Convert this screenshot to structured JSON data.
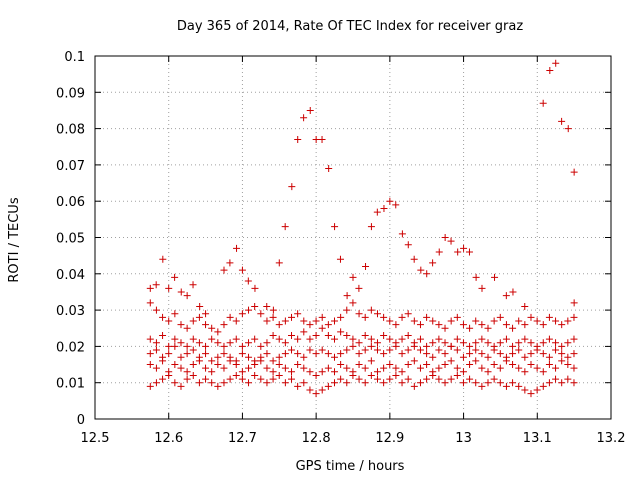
{
  "chart_data": {
    "type": "scatter",
    "title": "Day 365 of 2014, Rate Of TEC Index for receiver graz",
    "xlabel": "GPS time / hours",
    "ylabel": "ROTI / TECUs",
    "xlim": [
      12.5,
      13.2
    ],
    "ylim": [
      0,
      0.1
    ],
    "xticks": [
      "12.5",
      "12.6",
      "12.7",
      "12.8",
      "12.9",
      "13",
      "13.1",
      "13.2"
    ],
    "yticks": [
      "0",
      "0.01",
      "0.02",
      "0.03",
      "0.04",
      "0.05",
      "0.06",
      "0.07",
      "0.08",
      "0.09",
      "0.1"
    ],
    "grid": true,
    "marker": "+",
    "series_color": "#cc0000",
    "x_start": 12.575,
    "x_end": 13.15,
    "x_step": 0.00833,
    "bands": [
      {
        "name": "low",
        "values": [
          0.009,
          0.01,
          0.011,
          0.012,
          0.01,
          0.009,
          0.011,
          0.012,
          0.01,
          0.011,
          0.01,
          0.009,
          0.01,
          0.011,
          0.012,
          0.011,
          0.01,
          0.012,
          0.011,
          0.01,
          0.011,
          0.012,
          0.01,
          0.011,
          0.009,
          0.01,
          0.008,
          0.007,
          0.008,
          0.009,
          0.01,
          0.011,
          0.01,
          0.012,
          0.011,
          0.01,
          0.012,
          0.011,
          0.01,
          0.011,
          0.012,
          0.01,
          0.011,
          0.009,
          0.01,
          0.011,
          0.012,
          0.011,
          0.01,
          0.011,
          0.012,
          0.01,
          0.011,
          0.01,
          0.009,
          0.01,
          0.011,
          0.01,
          0.009,
          0.01,
          0.009,
          0.008,
          0.007,
          0.008,
          0.009,
          0.01,
          0.011,
          0.01,
          0.011,
          0.01
        ]
      },
      {
        "name": "mid-low",
        "values": [
          0.015,
          0.014,
          0.016,
          0.013,
          0.015,
          0.014,
          0.013,
          0.015,
          0.016,
          0.014,
          0.013,
          0.015,
          0.014,
          0.016,
          0.015,
          0.013,
          0.014,
          0.015,
          0.016,
          0.014,
          0.013,
          0.015,
          0.014,
          0.013,
          0.015,
          0.014,
          0.013,
          0.012,
          0.013,
          0.014,
          0.013,
          0.015,
          0.014,
          0.013,
          0.015,
          0.014,
          0.016,
          0.013,
          0.014,
          0.015,
          0.014,
          0.013,
          0.015,
          0.016,
          0.014,
          0.015,
          0.013,
          0.014,
          0.015,
          0.016,
          0.014,
          0.013,
          0.015,
          0.016,
          0.014,
          0.013,
          0.015,
          0.014,
          0.016,
          0.015,
          0.014,
          0.013,
          0.015,
          0.014,
          0.013,
          0.015,
          0.014,
          0.016,
          0.015,
          0.014
        ]
      },
      {
        "name": "mid",
        "values": [
          0.018,
          0.019,
          0.017,
          0.018,
          0.02,
          0.017,
          0.018,
          0.019,
          0.017,
          0.018,
          0.016,
          0.017,
          0.018,
          0.017,
          0.016,
          0.018,
          0.017,
          0.016,
          0.017,
          0.018,
          0.016,
          0.017,
          0.018,
          0.019,
          0.018,
          0.017,
          0.019,
          0.018,
          0.019,
          0.018,
          0.017,
          0.018,
          0.019,
          0.02,
          0.018,
          0.019,
          0.02,
          0.019,
          0.018,
          0.019,
          0.02,
          0.018,
          0.019,
          0.02,
          0.019,
          0.018,
          0.017,
          0.019,
          0.018,
          0.02,
          0.019,
          0.017,
          0.018,
          0.019,
          0.018,
          0.017,
          0.019,
          0.018,
          0.017,
          0.018,
          0.019,
          0.017,
          0.018,
          0.019,
          0.018,
          0.017,
          0.019,
          0.018,
          0.017,
          0.018
        ]
      },
      {
        "name": "mid-high",
        "values": [
          0.022,
          0.021,
          0.023,
          0.02,
          0.022,
          0.021,
          0.02,
          0.022,
          0.021,
          0.02,
          0.022,
          0.021,
          0.02,
          0.021,
          0.022,
          0.02,
          0.021,
          0.022,
          0.02,
          0.021,
          0.023,
          0.022,
          0.021,
          0.023,
          0.022,
          0.024,
          0.022,
          0.023,
          0.025,
          0.023,
          0.022,
          0.024,
          0.023,
          0.022,
          0.021,
          0.023,
          0.022,
          0.021,
          0.023,
          0.022,
          0.021,
          0.022,
          0.023,
          0.021,
          0.022,
          0.02,
          0.021,
          0.022,
          0.021,
          0.02,
          0.022,
          0.021,
          0.02,
          0.021,
          0.022,
          0.021,
          0.02,
          0.021,
          0.022,
          0.02,
          0.021,
          0.022,
          0.021,
          0.02,
          0.021,
          0.022,
          0.021,
          0.02,
          0.021,
          0.022
        ]
      },
      {
        "name": "high",
        "values": [
          0.032,
          0.03,
          0.028,
          0.027,
          0.029,
          0.026,
          0.025,
          0.027,
          0.028,
          0.026,
          0.025,
          0.024,
          0.026,
          0.028,
          0.027,
          0.029,
          0.03,
          0.031,
          0.029,
          0.027,
          0.028,
          0.026,
          0.027,
          0.028,
          0.029,
          0.027,
          0.026,
          0.027,
          0.028,
          0.026,
          0.027,
          0.028,
          0.03,
          0.032,
          0.029,
          0.028,
          0.03,
          0.029,
          0.028,
          0.027,
          0.026,
          0.028,
          0.029,
          0.027,
          0.026,
          0.028,
          0.027,
          0.026,
          0.025,
          0.027,
          0.028,
          0.026,
          0.025,
          0.027,
          0.026,
          0.025,
          0.027,
          0.028,
          0.026,
          0.025,
          0.027,
          0.026,
          0.028,
          0.027,
          0.026,
          0.028,
          0.027,
          0.026,
          0.027,
          0.028
        ]
      }
    ],
    "outliers": [
      {
        "x": 12.575,
        "y": 0.036
      },
      {
        "x": 12.583,
        "y": 0.037
      },
      {
        "x": 12.592,
        "y": 0.044
      },
      {
        "x": 12.6,
        "y": 0.036
      },
      {
        "x": 12.608,
        "y": 0.039
      },
      {
        "x": 12.617,
        "y": 0.035
      },
      {
        "x": 12.625,
        "y": 0.034
      },
      {
        "x": 12.633,
        "y": 0.037
      },
      {
        "x": 12.642,
        "y": 0.031
      },
      {
        "x": 12.65,
        "y": 0.029
      },
      {
        "x": 12.675,
        "y": 0.041
      },
      {
        "x": 12.683,
        "y": 0.043
      },
      {
        "x": 12.692,
        "y": 0.047
      },
      {
        "x": 12.7,
        "y": 0.041
      },
      {
        "x": 12.708,
        "y": 0.038
      },
      {
        "x": 12.717,
        "y": 0.036
      },
      {
        "x": 12.733,
        "y": 0.031
      },
      {
        "x": 12.742,
        "y": 0.03
      },
      {
        "x": 12.75,
        "y": 0.043
      },
      {
        "x": 12.758,
        "y": 0.053
      },
      {
        "x": 12.767,
        "y": 0.064
      },
      {
        "x": 12.775,
        "y": 0.077
      },
      {
        "x": 12.783,
        "y": 0.083
      },
      {
        "x": 12.792,
        "y": 0.085
      },
      {
        "x": 12.8,
        "y": 0.077
      },
      {
        "x": 12.808,
        "y": 0.077
      },
      {
        "x": 12.817,
        "y": 0.069
      },
      {
        "x": 12.825,
        "y": 0.053
      },
      {
        "x": 12.833,
        "y": 0.044
      },
      {
        "x": 12.842,
        "y": 0.034
      },
      {
        "x": 12.85,
        "y": 0.039
      },
      {
        "x": 12.858,
        "y": 0.036
      },
      {
        "x": 12.867,
        "y": 0.042
      },
      {
        "x": 12.875,
        "y": 0.053
      },
      {
        "x": 12.883,
        "y": 0.057
      },
      {
        "x": 12.892,
        "y": 0.058
      },
      {
        "x": 12.9,
        "y": 0.06
      },
      {
        "x": 12.908,
        "y": 0.059
      },
      {
        "x": 12.917,
        "y": 0.051
      },
      {
        "x": 12.925,
        "y": 0.048
      },
      {
        "x": 12.933,
        "y": 0.044
      },
      {
        "x": 12.942,
        "y": 0.041
      },
      {
        "x": 12.95,
        "y": 0.04
      },
      {
        "x": 12.958,
        "y": 0.043
      },
      {
        "x": 12.967,
        "y": 0.046
      },
      {
        "x": 12.975,
        "y": 0.05
      },
      {
        "x": 12.983,
        "y": 0.049
      },
      {
        "x": 12.992,
        "y": 0.046
      },
      {
        "x": 13.0,
        "y": 0.047
      },
      {
        "x": 13.008,
        "y": 0.046
      },
      {
        "x": 13.017,
        "y": 0.039
      },
      {
        "x": 13.025,
        "y": 0.036
      },
      {
        "x": 13.042,
        "y": 0.039
      },
      {
        "x": 13.058,
        "y": 0.034
      },
      {
        "x": 13.067,
        "y": 0.035
      },
      {
        "x": 13.083,
        "y": 0.031
      },
      {
        "x": 13.108,
        "y": 0.087
      },
      {
        "x": 13.117,
        "y": 0.096
      },
      {
        "x": 13.125,
        "y": 0.098
      },
      {
        "x": 13.133,
        "y": 0.082
      },
      {
        "x": 13.142,
        "y": 0.08
      },
      {
        "x": 13.15,
        "y": 0.068
      },
      {
        "x": 13.15,
        "y": 0.032
      }
    ]
  }
}
